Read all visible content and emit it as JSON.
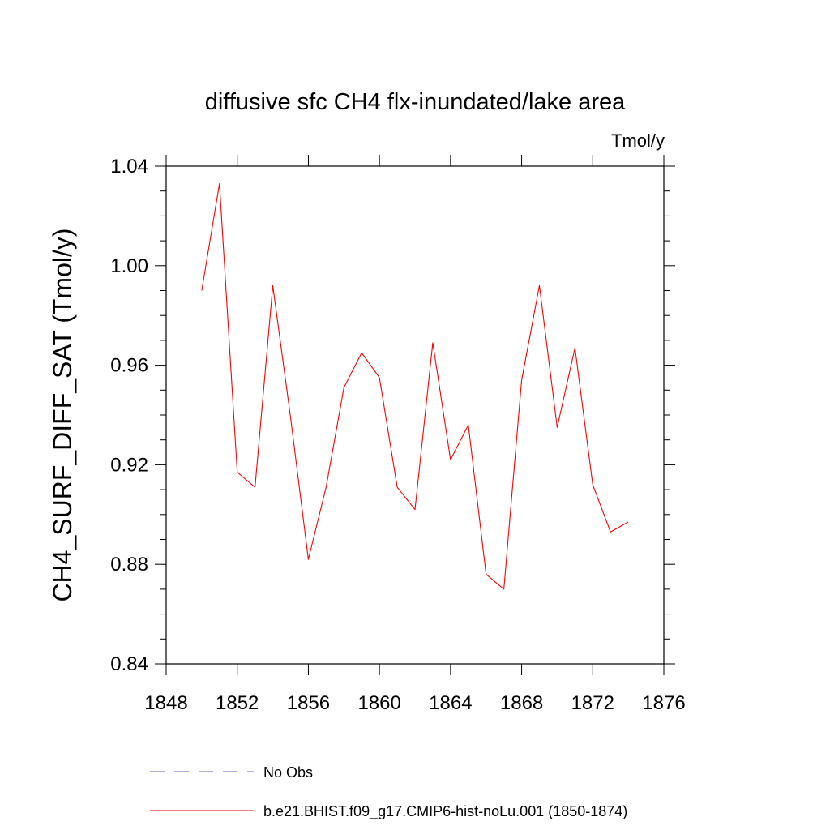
{
  "chart_data": {
    "type": "line",
    "title": "diffusive sfc CH4 flx-inundated/lake area",
    "units_label": "Tmol/y",
    "ylabel": "CH4_SURF_DIFF_SAT  (Tmol/y)",
    "xlabel": "",
    "xlim": [
      1848,
      1876
    ],
    "ylim": [
      0.84,
      1.04
    ],
    "x_ticks": [
      "1848",
      "1852",
      "1856",
      "1860",
      "1864",
      "1868",
      "1872",
      "1876"
    ],
    "y_ticks": [
      "0.84",
      "0.88",
      "0.92",
      "0.96",
      "1.00",
      "1.04"
    ],
    "x_tick_values": [
      1848,
      1852,
      1856,
      1860,
      1864,
      1868,
      1872,
      1876
    ],
    "y_tick_values": [
      0.84,
      0.88,
      0.92,
      0.96,
      1.0,
      1.04
    ],
    "grid": false,
    "legend_position": "bottom",
    "series": [
      {
        "name": "b.e21.BHIST.f09_g17.CMIP6-hist-noLu.001 (1850-1874)",
        "color": "#ff0000",
        "style": "solid",
        "x": [
          1850,
          1851,
          1852,
          1853,
          1854,
          1855,
          1856,
          1857,
          1858,
          1859,
          1860,
          1861,
          1862,
          1863,
          1864,
          1865,
          1866,
          1867,
          1868,
          1869,
          1870,
          1871,
          1872,
          1873,
          1874
        ],
        "values": [
          0.99,
          1.033,
          0.917,
          0.911,
          0.992,
          0.939,
          0.882,
          0.911,
          0.951,
          0.965,
          0.955,
          0.911,
          0.902,
          0.969,
          0.922,
          0.936,
          0.876,
          0.87,
          0.954,
          0.992,
          0.935,
          0.967,
          0.912,
          0.893,
          0.897
        ]
      }
    ],
    "legend": [
      {
        "label": "No Obs",
        "color": "#6a5acd",
        "style": "dashed"
      },
      {
        "label": "b.e21.BHIST.f09_g17.CMIP6-hist-noLu.001 (1850-1874)",
        "color": "#ff0000",
        "style": "solid"
      }
    ]
  }
}
